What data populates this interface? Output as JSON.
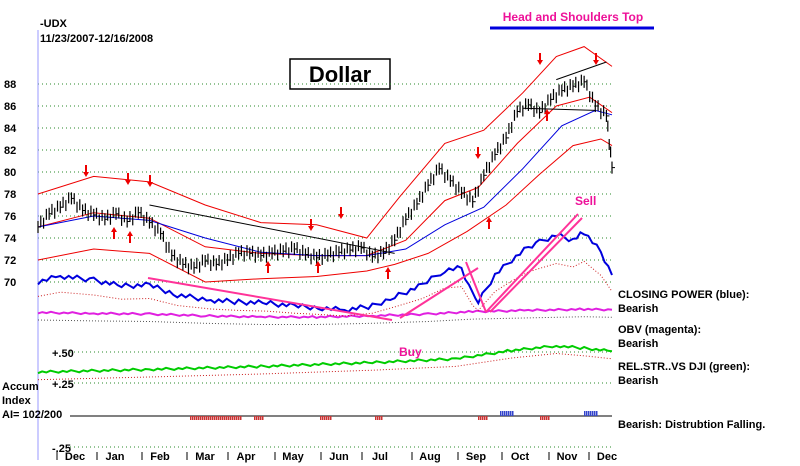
{
  "chart_data": {
    "type": "line",
    "symbol": "-UDX",
    "date_range": "11/23/2007-12/16/2008",
    "title": "Dollar",
    "pattern_label": "Head and Shoulders Top",
    "x_ticks": [
      "Dec",
      "Jan",
      "Feb",
      "Mar",
      "Apr",
      "May",
      "Jun",
      "Jul",
      "Aug",
      "Sep",
      "Oct",
      "Nov",
      "Dec"
    ],
    "y_ticks": [
      70,
      72,
      74,
      76,
      78,
      80,
      82,
      84,
      86,
      88
    ],
    "ylim": [
      68,
      90
    ],
    "grid": true,
    "series": [
      {
        "name": "price",
        "color": "#000000",
        "values": [
          [
            0,
            75.0
          ],
          [
            4,
            76.2
          ],
          [
            8,
            76.8
          ],
          [
            12,
            77.6
          ],
          [
            16,
            76.5
          ],
          [
            20,
            76.1
          ],
          [
            24,
            75.7
          ],
          [
            28,
            76.2
          ],
          [
            32,
            75.5
          ],
          [
            36,
            76.3
          ],
          [
            40,
            75.4
          ],
          [
            44,
            74.4
          ],
          [
            48,
            72.4
          ],
          [
            52,
            71.6
          ],
          [
            56,
            71.3
          ],
          [
            60,
            71.9
          ],
          [
            64,
            71.6
          ],
          [
            68,
            72.0
          ],
          [
            72,
            72.6
          ],
          [
            76,
            72.6
          ],
          [
            80,
            72.4
          ],
          [
            84,
            72.6
          ],
          [
            88,
            72.8
          ],
          [
            92,
            73.0
          ],
          [
            96,
            72.5
          ],
          [
            100,
            72.2
          ],
          [
            104,
            72.4
          ],
          [
            108,
            72.7
          ],
          [
            112,
            72.9
          ],
          [
            116,
            73.1
          ],
          [
            120,
            72.3
          ],
          [
            124,
            72.6
          ],
          [
            128,
            73.8
          ],
          [
            132,
            75.7
          ],
          [
            136,
            77.1
          ],
          [
            140,
            78.8
          ],
          [
            144,
            80.3
          ],
          [
            148,
            79.2
          ],
          [
            152,
            78.1
          ],
          [
            156,
            77.3
          ],
          [
            160,
            79.7
          ],
          [
            164,
            81.6
          ],
          [
            168,
            83.1
          ],
          [
            172,
            85.5
          ],
          [
            176,
            86.1
          ],
          [
            180,
            85.4
          ],
          [
            184,
            86.6
          ],
          [
            188,
            87.4
          ],
          [
            192,
            87.8
          ],
          [
            196,
            88.2
          ],
          [
            200,
            86.0
          ],
          [
            204,
            85.1
          ],
          [
            206,
            80.4
          ]
        ]
      },
      {
        "name": "closing_power",
        "color": "#0000cc",
        "values": [
          [
            0,
            0.48
          ],
          [
            8,
            0.54
          ],
          [
            20,
            0.5
          ],
          [
            30,
            0.44
          ],
          [
            40,
            0.45
          ],
          [
            50,
            0.35
          ],
          [
            62,
            0.3
          ],
          [
            72,
            0.28
          ],
          [
            82,
            0.27
          ],
          [
            92,
            0.24
          ],
          [
            102,
            0.22
          ],
          [
            110,
            0.2
          ],
          [
            120,
            0.24
          ],
          [
            128,
            0.33
          ],
          [
            138,
            0.45
          ],
          [
            146,
            0.6
          ],
          [
            152,
            0.62
          ],
          [
            156,
            0.35
          ],
          [
            158,
            0.28
          ],
          [
            164,
            0.55
          ],
          [
            170,
            0.7
          ],
          [
            176,
            0.83
          ],
          [
            180,
            0.88
          ],
          [
            186,
            0.95
          ],
          [
            192,
            0.9
          ],
          [
            196,
            0.98
          ],
          [
            202,
            0.78
          ],
          [
            206,
            0.55
          ]
        ]
      },
      {
        "name": "obv",
        "color": "#e020e0",
        "values": [
          [
            0,
            0.25
          ],
          [
            20,
            0.22
          ],
          [
            40,
            0.2
          ],
          [
            60,
            0.14
          ],
          [
            80,
            0.1
          ],
          [
            100,
            0.1
          ],
          [
            120,
            0.14
          ],
          [
            140,
            0.2
          ],
          [
            156,
            0.28
          ],
          [
            176,
            0.32
          ],
          [
            196,
            0.36
          ],
          [
            206,
            0.34
          ]
        ]
      },
      {
        "name": "rel_str_vs_dji",
        "color": "#00cc00",
        "values": [
          [
            0,
            0.05
          ],
          [
            40,
            0.12
          ],
          [
            80,
            0.2
          ],
          [
            120,
            0.3
          ],
          [
            150,
            0.4
          ],
          [
            170,
            0.62
          ],
          [
            186,
            0.74
          ],
          [
            196,
            0.68
          ],
          [
            206,
            0.6
          ]
        ]
      }
    ],
    "band_upper": [
      [
        0,
        78.0
      ],
      [
        20,
        79.6
      ],
      [
        40,
        79.1
      ],
      [
        60,
        77.0
      ],
      [
        80,
        75.4
      ],
      [
        100,
        75.2
      ],
      [
        118,
        74.0
      ],
      [
        130,
        77.8
      ],
      [
        146,
        82.6
      ],
      [
        160,
        83.8
      ],
      [
        174,
        87.2
      ],
      [
        186,
        90.5
      ],
      [
        196,
        91.4
      ],
      [
        206,
        89.6
      ]
    ],
    "band_lower": [
      [
        0,
        72.0
      ],
      [
        20,
        73.0
      ],
      [
        40,
        72.6
      ],
      [
        60,
        70.0
      ],
      [
        80,
        70.3
      ],
      [
        100,
        70.5
      ],
      [
        118,
        71.0
      ],
      [
        128,
        71.6
      ],
      [
        140,
        72.6
      ],
      [
        154,
        74.6
      ],
      [
        168,
        77.0
      ],
      [
        180,
        79.8
      ],
      [
        192,
        82.4
      ],
      [
        202,
        83.0
      ],
      [
        206,
        82.4
      ]
    ],
    "ma_red": [
      [
        0,
        75.0
      ],
      [
        20,
        76.3
      ],
      [
        40,
        75.8
      ],
      [
        60,
        73.2
      ],
      [
        80,
        72.6
      ],
      [
        100,
        72.4
      ],
      [
        118,
        72.4
      ],
      [
        132,
        73.8
      ],
      [
        146,
        77.4
      ],
      [
        158,
        78.6
      ],
      [
        172,
        82.6
      ],
      [
        186,
        86.0
      ],
      [
        198,
        86.8
      ],
      [
        206,
        85.4
      ]
    ],
    "ma_blue": [
      [
        0,
        75.0
      ],
      [
        20,
        76.0
      ],
      [
        40,
        75.6
      ],
      [
        60,
        74.0
      ],
      [
        80,
        72.7
      ],
      [
        100,
        72.4
      ],
      [
        118,
        72.4
      ],
      [
        132,
        73.0
      ],
      [
        146,
        75.2
      ],
      [
        160,
        76.8
      ],
      [
        174,
        80.3
      ],
      [
        188,
        84.2
      ],
      [
        200,
        85.6
      ],
      [
        206,
        85.2
      ]
    ],
    "trendlines": [
      {
        "color": "#000000",
        "from": [
          40,
          77.0
        ],
        "to": [
          128,
          72.6
        ]
      },
      {
        "color": "#000000",
        "from": [
          186,
          88.4
        ],
        "to": [
          204,
          90.0
        ]
      },
      {
        "color": "#000000",
        "from": [
          174,
          85.8
        ],
        "to": [
          200,
          85.6
        ]
      }
    ],
    "indicator_labels": [
      {
        "line1": "CLOSING POWER (blue):",
        "line2": "Bearish"
      },
      {
        "line1": "OBV (magenta):",
        "line2": "Bearish"
      },
      {
        "line1": "REL.STR..VS DJI (green):",
        "line2": "Bearish"
      }
    ],
    "accum_index": {
      "label1": "Accum",
      "label2": "Index",
      "label3": "AI= 102/200",
      "ticks": [
        "+.50",
        "+.25",
        "-.25"
      ],
      "status": "Bearish: Distrubtion Falling."
    },
    "annotations": {
      "buy": "Buy",
      "sell": "Sell"
    },
    "colors": {
      "red": "#ee0000",
      "blue": "#0000dd",
      "magenta": "#ee1199",
      "green": "#00cc00",
      "pink": "#ff3399"
    }
  }
}
